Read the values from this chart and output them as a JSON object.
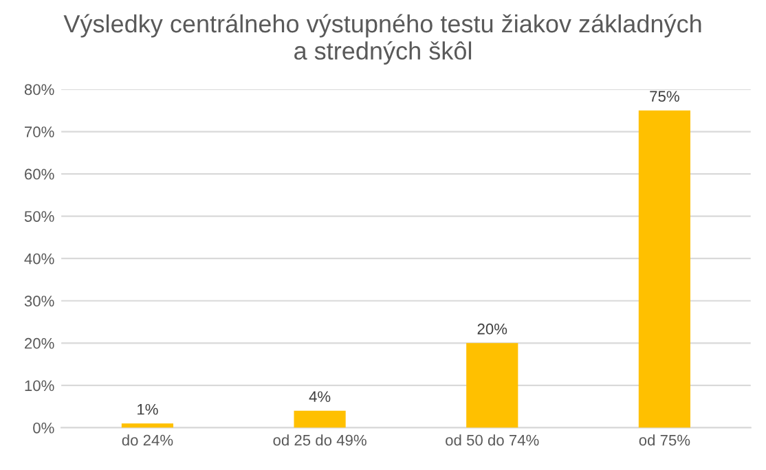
{
  "chart_data": {
    "type": "bar",
    "title": "Výsledky centrálneho výstupného testu žiakov základných\na stredných škôl",
    "categories": [
      "do 24%",
      "od 25 do 49%",
      "od 50 do 74%",
      "od 75%"
    ],
    "values": [
      1,
      4,
      20,
      75
    ],
    "value_labels": [
      "1%",
      "4%",
      "20%",
      "75%"
    ],
    "color": "#ffc000",
    "ylim": [
      0,
      80
    ],
    "yticks": [
      {
        "value": 0,
        "label": "0%"
      },
      {
        "value": 10,
        "label": "10%"
      },
      {
        "value": 20,
        "label": "20%"
      },
      {
        "value": 30,
        "label": "30%"
      },
      {
        "value": 40,
        "label": "40%"
      },
      {
        "value": 50,
        "label": "50%"
      },
      {
        "value": 60,
        "label": "60%"
      },
      {
        "value": 70,
        "label": "70%"
      },
      {
        "value": 80,
        "label": "80%"
      }
    ],
    "grid": "y",
    "legend": false
  }
}
